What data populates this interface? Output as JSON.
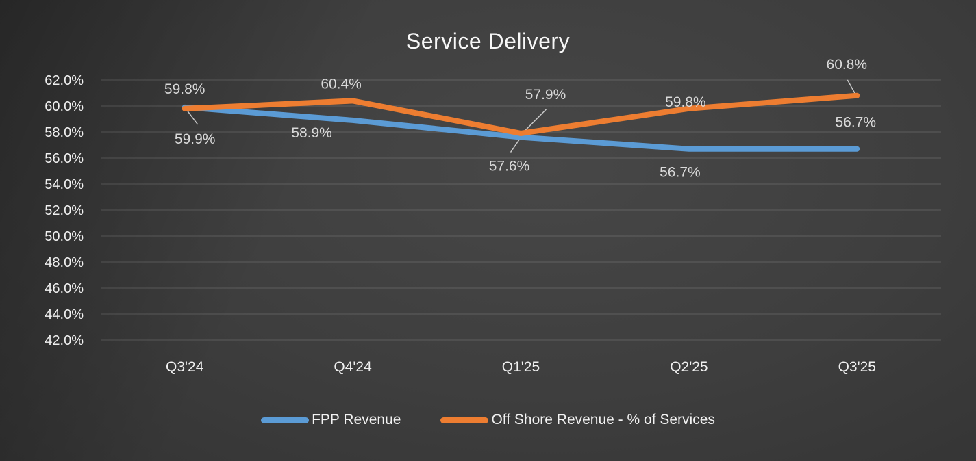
{
  "title": "Service Delivery",
  "chart_data": {
    "type": "line",
    "title": "Service Delivery",
    "categories": [
      "Q3'24",
      "Q4'24",
      "Q1'25",
      "Q2'25",
      "Q3'25"
    ],
    "series": [
      {
        "name": "FPP Revenue",
        "color": "#5B9BD5",
        "values": [
          59.9,
          58.9,
          57.6,
          56.7,
          56.7
        ],
        "labels": [
          "59.9%",
          "58.9%",
          "57.6%",
          "56.7%",
          "56.7%"
        ]
      },
      {
        "name": "Off Shore Revenue - % of Services",
        "color": "#ED7D31",
        "values": [
          59.8,
          60.4,
          57.9,
          59.8,
          60.8
        ],
        "labels": [
          "59.8%",
          "60.4%",
          "57.9%",
          "59.8%",
          "60.8%"
        ]
      }
    ],
    "y_axis": {
      "tick_labels": [
        "62.0%",
        "60.0%",
        "58.0%",
        "56.0%",
        "54.0%",
        "52.0%",
        "50.0%",
        "48.0%",
        "46.0%",
        "44.0%",
        "42.0%"
      ],
      "min": 42,
      "max": 62,
      "step": 2,
      "unit": "%"
    },
    "grid": true,
    "legend_position": "bottom",
    "colors": {
      "background_center": "#424242",
      "background_edge": "#262626",
      "gridline": "#565656",
      "axis_text": "#F0F0F0",
      "data_label_text": "#D9D9D9",
      "title_text": "#F7F7F7"
    }
  }
}
